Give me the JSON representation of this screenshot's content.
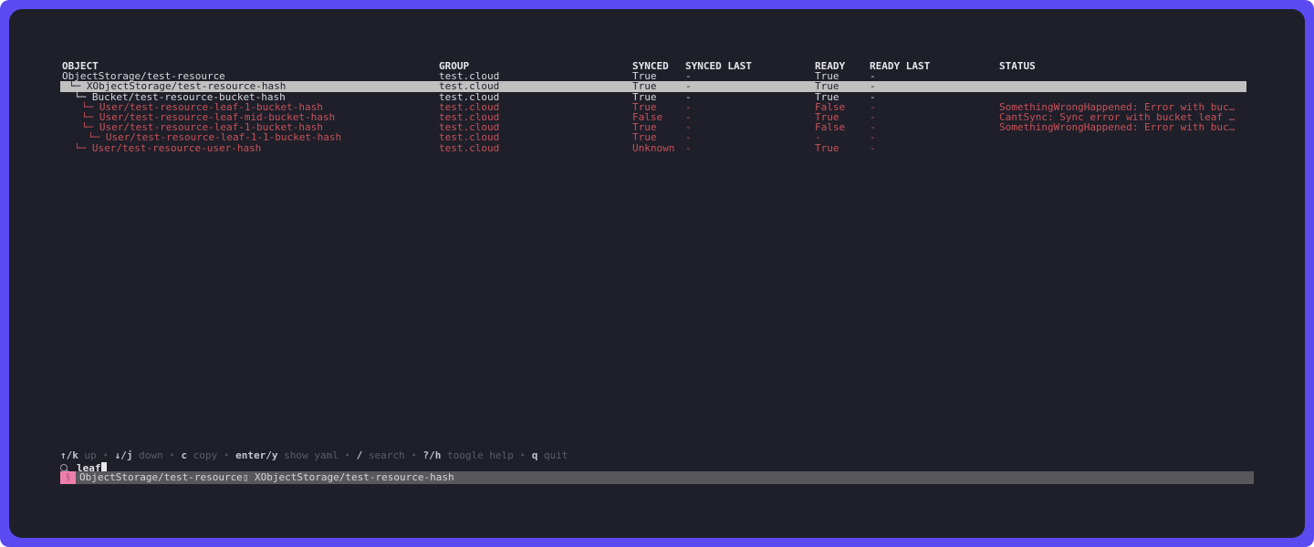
{
  "theme": {
    "border_color": "#5a4af0",
    "panel_bg": "#1e1f29",
    "text_color": "#d8d8dd",
    "error_color": "#c9515a",
    "selected_bg": "#c1c1c1",
    "statusbar_bg": "#58585c",
    "badge_pink": "#ee7fac"
  },
  "table": {
    "columns": [
      "OBJECT",
      "GROUP",
      "SYNCED",
      "SYNCED LAST",
      "READY",
      "READY LAST",
      "STATUS"
    ],
    "connector_glyph": "└─ ",
    "rows": [
      {
        "object": "ObjectStorage/test-resource",
        "indent": 0,
        "group": "test.cloud",
        "synced": "True",
        "synced_last": "-",
        "ready": "True",
        "ready_last": "-",
        "status": "",
        "state": "ok",
        "selected": false
      },
      {
        "object": "XObjectStorage/test-resource-hash",
        "indent": 1,
        "group": "test.cloud",
        "synced": "True",
        "synced_last": "-",
        "ready": "True",
        "ready_last": "-",
        "status": "",
        "state": "ok",
        "selected": true
      },
      {
        "object": "Bucket/test-resource-bucket-hash",
        "indent": 2,
        "group": "test.cloud",
        "synced": "True",
        "synced_last": "-",
        "ready": "True",
        "ready_last": "-",
        "status": "",
        "state": "ok",
        "selected": false
      },
      {
        "object": "User/test-resource-leaf-1-bucket-hash",
        "indent": 3,
        "group": "test.cloud",
        "synced": "True",
        "synced_last": "-",
        "ready": "False",
        "ready_last": "-",
        "status": "SomethingWrongHappened: Error with buc…",
        "state": "error",
        "selected": false
      },
      {
        "object": "User/test-resource-leaf-mid-bucket-hash",
        "indent": 3,
        "group": "test.cloud",
        "synced": "False",
        "synced_last": "-",
        "ready": "True",
        "ready_last": "-",
        "status": "CantSync: Sync error with bucket leaf …",
        "state": "error",
        "selected": false
      },
      {
        "object": "User/test-resource-leaf-1-bucket-hash",
        "indent": 3,
        "group": "test.cloud",
        "synced": "True",
        "synced_last": "-",
        "ready": "False",
        "ready_last": "-",
        "status": "SomethingWrongHappened: Error with buc…",
        "state": "error",
        "selected": false
      },
      {
        "object": "User/test-resource-leaf-1-1-bucket-hash",
        "indent": 4,
        "group": "test.cloud",
        "synced": "True",
        "synced_last": "-",
        "ready": "-",
        "ready_last": "-",
        "status": "",
        "state": "error",
        "selected": false
      },
      {
        "object": "User/test-resource-user-hash",
        "indent": 2,
        "group": "test.cloud",
        "synced": "Unknown",
        "synced_last": "-",
        "ready": "True",
        "ready_last": "-",
        "status": "",
        "state": "error",
        "selected": false
      }
    ]
  },
  "hints": {
    "separator": "•",
    "items": [
      {
        "key": "↑/k",
        "label": "up"
      },
      {
        "key": "↓/j",
        "label": "down"
      },
      {
        "key": "c",
        "label": "copy"
      },
      {
        "key": "enter/y",
        "label": "show yaml"
      },
      {
        "key": "/",
        "label": "search"
      },
      {
        "key": "?/h",
        "label": "toogle help"
      },
      {
        "key": "q",
        "label": "quit"
      }
    ]
  },
  "search": {
    "icon": "magnifier-icon",
    "value": "leaf"
  },
  "breadcrumb": {
    "badge_glyph": "§",
    "root": "ObjectStorage/test-resource",
    "separator": "▯",
    "current": "XObjectStorage/test-resource-hash"
  }
}
